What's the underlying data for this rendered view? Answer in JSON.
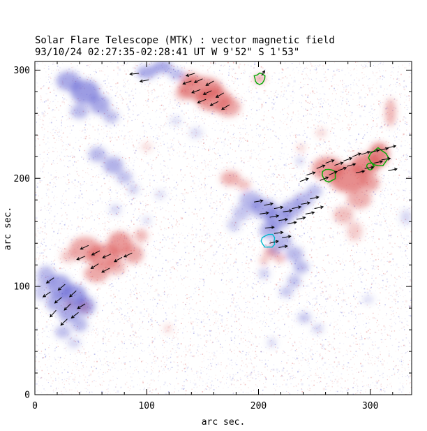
{
  "chart_data": {
    "type": "heatmap",
    "title": "Solar Flare Telescope (MTK) : vector magnetic field",
    "subtitle": "93/10/24  02:27:35-02:28:41 UT    W 9'52\"  S 1'53\"",
    "xlabel": "arc sec.",
    "ylabel": "arc sec.",
    "xlim": [
      0,
      337
    ],
    "ylim": [
      0,
      308
    ],
    "xticks": [
      0,
      100,
      200,
      300
    ],
    "yticks": [
      0,
      100,
      200,
      300
    ],
    "minor_tick_step": 20,
    "vector_length": 8,
    "colors": {
      "positive": "#d84848",
      "negative": "#4a4acc",
      "contour_green": "#00a800",
      "contour_cyan": "#00b8cc",
      "vector": "#000000",
      "frame": "#000000"
    },
    "noise": {
      "count": 9100,
      "seed": 77
    },
    "positive_regions": [
      [
        148,
        283,
        20,
        11,
        0.75
      ],
      [
        160,
        273,
        16,
        11,
        0.7
      ],
      [
        173,
        266,
        11,
        9,
        0.6
      ],
      [
        139,
        292,
        8,
        6,
        0.55
      ],
      [
        132,
        278,
        7,
        6,
        0.4
      ],
      [
        201,
        292,
        5,
        4,
        0.65
      ],
      [
        318,
        261,
        5,
        13,
        0.5
      ],
      [
        262,
        209,
        14,
        11,
        0.7
      ],
      [
        280,
        200,
        17,
        13,
        0.8
      ],
      [
        296,
        213,
        13,
        10,
        0.8
      ],
      [
        308,
        222,
        9,
        11,
        0.85
      ],
      [
        290,
        181,
        11,
        9,
        0.55
      ],
      [
        276,
        166,
        9,
        8,
        0.45
      ],
      [
        286,
        151,
        7,
        9,
        0.35
      ],
      [
        300,
        196,
        8,
        8,
        0.65
      ],
      [
        45,
        135,
        14,
        11,
        0.6
      ],
      [
        62,
        128,
        15,
        11,
        0.7
      ],
      [
        76,
        140,
        11,
        11,
        0.7
      ],
      [
        88,
        130,
        9,
        9,
        0.6
      ],
      [
        55,
        112,
        11,
        8,
        0.6
      ],
      [
        72,
        118,
        9,
        7,
        0.5
      ],
      [
        95,
        147,
        6,
        6,
        0.5
      ],
      [
        30,
        128,
        7,
        6,
        0.4
      ],
      [
        44,
        81,
        5,
        5,
        0.55
      ],
      [
        31,
        84,
        4,
        4,
        0.45
      ],
      [
        175,
        200,
        9,
        7,
        0.55
      ],
      [
        187,
        194,
        6,
        5,
        0.45
      ],
      [
        211,
        132,
        6,
        5,
        0.6
      ],
      [
        219,
        126,
        5,
        4,
        0.5
      ],
      [
        205,
        124,
        4,
        4,
        0.45
      ],
      [
        256,
        242,
        5,
        4,
        0.3
      ],
      [
        238,
        228,
        4,
        4,
        0.3
      ],
      [
        100,
        229,
        5,
        4,
        0.25
      ],
      [
        119,
        61,
        4,
        4,
        0.25
      ]
    ],
    "negative_regions": [
      [
        30,
        290,
        11,
        9,
        0.6
      ],
      [
        45,
        280,
        13,
        11,
        0.7
      ],
      [
        58,
        268,
        9,
        9,
        0.6
      ],
      [
        40,
        262,
        8,
        7,
        0.5
      ],
      [
        68,
        257,
        7,
        6,
        0.45
      ],
      [
        100,
        298,
        9,
        6,
        0.6
      ],
      [
        114,
        303,
        9,
        6,
        0.6
      ],
      [
        127,
        296,
        7,
        5,
        0.5
      ],
      [
        56,
        222,
        8,
        7,
        0.5
      ],
      [
        70,
        212,
        9,
        8,
        0.55
      ],
      [
        80,
        201,
        7,
        6,
        0.45
      ],
      [
        88,
        190,
        5,
        5,
        0.35
      ],
      [
        193,
        180,
        10,
        8,
        0.5
      ],
      [
        205,
        172,
        12,
        9,
        0.6
      ],
      [
        218,
        163,
        12,
        9,
        0.6
      ],
      [
        230,
        172,
        10,
        8,
        0.55
      ],
      [
        240,
        180,
        9,
        7,
        0.5
      ],
      [
        250,
        188,
        7,
        6,
        0.45
      ],
      [
        210,
        152,
        9,
        8,
        0.55
      ],
      [
        222,
        142,
        8,
        7,
        0.5
      ],
      [
        232,
        130,
        8,
        7,
        0.5
      ],
      [
        238,
        118,
        7,
        6,
        0.5
      ],
      [
        232,
        105,
        6,
        6,
        0.45
      ],
      [
        225,
        95,
        6,
        5,
        0.4
      ],
      [
        185,
        168,
        8,
        7,
        0.4
      ],
      [
        178,
        157,
        6,
        6,
        0.35
      ],
      [
        215,
        135,
        6,
        6,
        0.4
      ],
      [
        10,
        110,
        8,
        9,
        0.5
      ],
      [
        22,
        100,
        11,
        11,
        0.65
      ],
      [
        35,
        92,
        11,
        10,
        0.7
      ],
      [
        45,
        82,
        9,
        9,
        0.6
      ],
      [
        30,
        75,
        9,
        8,
        0.6
      ],
      [
        18,
        85,
        8,
        8,
        0.55
      ],
      [
        40,
        65,
        7,
        7,
        0.5
      ],
      [
        25,
        58,
        7,
        6,
        0.45
      ],
      [
        35,
        48,
        6,
        5,
        0.3
      ],
      [
        5,
        95,
        5,
        8,
        0.4
      ],
      [
        126,
        253,
        5,
        4,
        0.25
      ],
      [
        72,
        171,
        5,
        5,
        0.3
      ],
      [
        100,
        161,
        4,
        4,
        0.25
      ],
      [
        241,
        71,
        6,
        5,
        0.4
      ],
      [
        253,
        61,
        5,
        4,
        0.35
      ],
      [
        212,
        48,
        4,
        4,
        0.3
      ],
      [
        298,
        88,
        5,
        4,
        0.25
      ],
      [
        332,
        164,
        5,
        7,
        0.3
      ],
      [
        237,
        216,
        4,
        4,
        0.3
      ],
      [
        144,
        242,
        6,
        5,
        0.25
      ],
      [
        112,
        185,
        5,
        4,
        0.25
      ],
      [
        205,
        112,
        5,
        5,
        0.35
      ]
    ],
    "vectors": [
      [
        140,
        290,
        200
      ],
      [
        150,
        292,
        205
      ],
      [
        160,
        290,
        210
      ],
      [
        148,
        282,
        200
      ],
      [
        158,
        281,
        205
      ],
      [
        169,
        279,
        210
      ],
      [
        153,
        273,
        203
      ],
      [
        164,
        271,
        207
      ],
      [
        174,
        268,
        212
      ],
      [
        143,
        297,
        196
      ],
      [
        93,
        297,
        185
      ],
      [
        102,
        291,
        190
      ],
      [
        203,
        295,
        60,
        5
      ],
      [
        243,
        203,
        18
      ],
      [
        252,
        209,
        22
      ],
      [
        260,
        214,
        20
      ],
      [
        268,
        212,
        18
      ],
      [
        276,
        216,
        20
      ],
      [
        284,
        220,
        22
      ],
      [
        292,
        222,
        18
      ],
      [
        300,
        224,
        14
      ],
      [
        308,
        226,
        12
      ],
      [
        315,
        228,
        14
      ],
      [
        255,
        198,
        22
      ],
      [
        263,
        203,
        24
      ],
      [
        271,
        207,
        20
      ],
      [
        279,
        211,
        16
      ],
      [
        295,
        209,
        10
      ],
      [
        303,
        214,
        12
      ],
      [
        287,
        205,
        12
      ],
      [
        310,
        217,
        10
      ],
      [
        316,
        207,
        12
      ],
      [
        237,
        197,
        20
      ],
      [
        196,
        178,
        10
      ],
      [
        205,
        175,
        12
      ],
      [
        214,
        172,
        10
      ],
      [
        222,
        169,
        8
      ],
      [
        230,
        172,
        12
      ],
      [
        238,
        176,
        10
      ],
      [
        246,
        181,
        12
      ],
      [
        201,
        167,
        8
      ],
      [
        210,
        164,
        10
      ],
      [
        218,
        161,
        8
      ],
      [
        226,
        158,
        10
      ],
      [
        234,
        162,
        12
      ],
      [
        242,
        167,
        10
      ],
      [
        250,
        172,
        12
      ],
      [
        206,
        154,
        6
      ],
      [
        214,
        149,
        8
      ],
      [
        221,
        145,
        10
      ],
      [
        210,
        140,
        14
      ],
      [
        218,
        136,
        10
      ],
      [
        48,
        138,
        205
      ],
      [
        58,
        133,
        208
      ],
      [
        68,
        130,
        205
      ],
      [
        78,
        127,
        210
      ],
      [
        57,
        121,
        212
      ],
      [
        67,
        117,
        208
      ],
      [
        45,
        128,
        202
      ],
      [
        87,
        131,
        206
      ],
      [
        17,
        108,
        215
      ],
      [
        27,
        102,
        220
      ],
      [
        37,
        96,
        222
      ],
      [
        24,
        90,
        220
      ],
      [
        32,
        84,
        225
      ],
      [
        19,
        78,
        228
      ],
      [
        29,
        70,
        224
      ],
      [
        39,
        76,
        218
      ],
      [
        14,
        95,
        214
      ],
      [
        45,
        84,
        212
      ]
    ],
    "contours": {
      "green": [
        [
          201,
          292,
          5
        ],
        [
          263,
          203,
          6
        ],
        [
          307,
          219,
          8
        ],
        [
          300,
          211,
          3
        ]
      ],
      "cyan": [
        [
          209,
          142,
          6
        ]
      ]
    }
  }
}
